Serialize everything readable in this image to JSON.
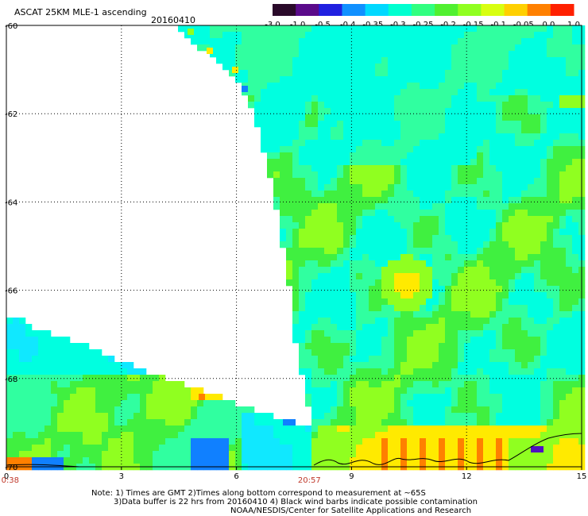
{
  "header": {
    "title": "ASCAT 25KM MLE-1 ascending",
    "date": "20160410"
  },
  "colorbar": {
    "labels": [
      "-3.0",
      "-1.0",
      "-0.5",
      "-0.4",
      "-0.35",
      "-0.3",
      "-0.25",
      "-0.2",
      "-0.15",
      "-0.1",
      "-0.05",
      "0.0",
      "1.0"
    ],
    "colors": [
      "#2a0a2a",
      "#5a0a8a",
      "#2020e0",
      "#1090ff",
      "#00d8ff",
      "#00ffd0",
      "#30ff80",
      "#50f030",
      "#90ff20",
      "#d8ff10",
      "#ffd000",
      "#ff8000",
      "#ff2000"
    ]
  },
  "map": {
    "xlim": [
      0,
      15
    ],
    "ylim": [
      -70,
      -60
    ],
    "x_ticks": [
      "0",
      "3",
      "6",
      "9",
      "12",
      "15"
    ],
    "y_ticks": [
      "-60",
      "-62",
      "-64",
      "-66",
      "-68",
      "-70"
    ],
    "time_labels": [
      {
        "text": "0:38",
        "lon": 0.1
      },
      {
        "text": "20:57",
        "lon": 7.9
      }
    ],
    "palette": {
      "cyan": "#00ffe0",
      "aqua": "#10e8ff",
      "teal": "#30ffa0",
      "green": "#40f040",
      "lime": "#90ff20",
      "yellow": "#ffea00",
      "orange": "#ff8000",
      "blue": "#1080ff",
      "violet": "#5010c0"
    }
  },
  "footer": {
    "line1": "Note: 1) Times are GMT 2)Times along bottom correspond to measurement at ~65S",
    "line2": "3)Data buffer is 22 hrs from 20160410 4) Black wind barbs indicate possible contamination",
    "line3": "NOAA/NESDIS/Center for Satellite Applications and Research"
  }
}
